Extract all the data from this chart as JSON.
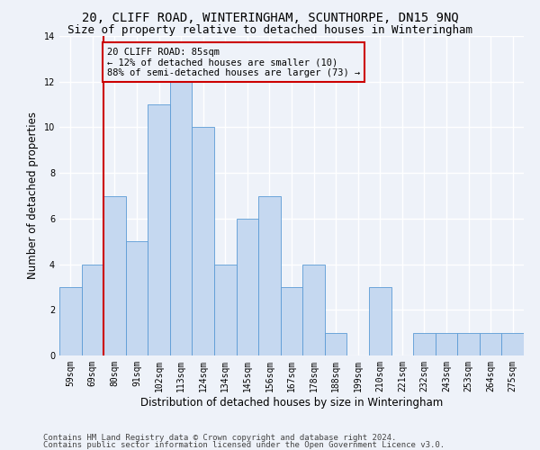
{
  "title": "20, CLIFF ROAD, WINTERINGHAM, SCUNTHORPE, DN15 9NQ",
  "subtitle": "Size of property relative to detached houses in Winteringham",
  "xlabel": "Distribution of detached houses by size in Winteringham",
  "ylabel": "Number of detached properties",
  "categories": [
    "59sqm",
    "69sqm",
    "80sqm",
    "91sqm",
    "102sqm",
    "113sqm",
    "124sqm",
    "134sqm",
    "145sqm",
    "156sqm",
    "167sqm",
    "178sqm",
    "188sqm",
    "199sqm",
    "210sqm",
    "221sqm",
    "232sqm",
    "243sqm",
    "253sqm",
    "264sqm",
    "275sqm"
  ],
  "values": [
    3,
    4,
    7,
    5,
    11,
    12,
    10,
    4,
    6,
    7,
    3,
    4,
    1,
    0,
    3,
    0,
    1,
    1,
    1,
    1,
    1
  ],
  "bar_color": "#c5d8f0",
  "bar_edge_color": "#5b9bd5",
  "annotation_text": "20 CLIFF ROAD: 85sqm\n← 12% of detached houses are smaller (10)\n88% of semi-detached houses are larger (73) →",
  "annotation_box_color": "#cc0000",
  "red_line_x": 2.0,
  "ylim": [
    0,
    14
  ],
  "yticks": [
    0,
    2,
    4,
    6,
    8,
    10,
    12,
    14
  ],
  "footer1": "Contains HM Land Registry data © Crown copyright and database right 2024.",
  "footer2": "Contains public sector information licensed under the Open Government Licence v3.0.",
  "background_color": "#eef2f9",
  "grid_color": "#ffffff",
  "title_fontsize": 10,
  "subtitle_fontsize": 9,
  "xlabel_fontsize": 8.5,
  "ylabel_fontsize": 8.5,
  "tick_fontsize": 7,
  "annotation_fontsize": 7.5,
  "footer_fontsize": 6.5
}
